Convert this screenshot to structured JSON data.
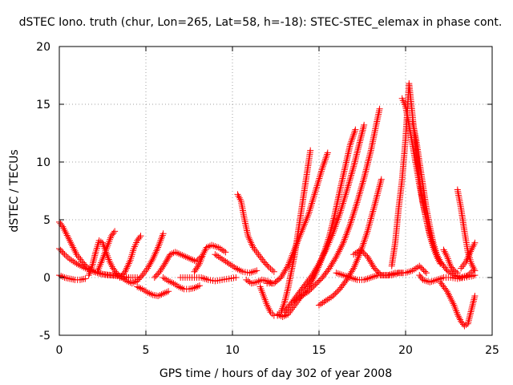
{
  "chart_data": {
    "type": "scatter",
    "title": "dSTEC Iono. truth (chur, Lon=265, Lat=58, h=-18): STEC-STEC_elemax in phase cont.",
    "xlabel": "GPS time / hours of day 302 of year 2008",
    "ylabel": "dSTEC  / TECUs",
    "xlim": [
      0,
      25
    ],
    "ylim": [
      -5,
      20
    ],
    "x_ticks": [
      0,
      5,
      10,
      15,
      20,
      25
    ],
    "y_ticks": [
      -5,
      0,
      5,
      10,
      15,
      20
    ],
    "grid": true,
    "marker": "+",
    "color": "#ff0000",
    "series": [
      {
        "x": [
          0.0,
          0.2,
          0.4,
          0.6,
          0.8,
          1.0,
          1.3,
          1.6,
          2.0,
          2.4,
          2.8,
          3.2,
          3.6,
          4.0
        ],
        "y": [
          4.8,
          4.4,
          3.8,
          3.2,
          2.6,
          2.0,
          1.4,
          0.9,
          0.5,
          0.3,
          0.2,
          0.2,
          0.1,
          0.0
        ]
      },
      {
        "x": [
          0.0,
          0.3,
          0.6,
          1.0,
          1.5,
          2.0,
          2.5,
          3.0,
          3.5,
          4.0,
          4.5
        ],
        "y": [
          2.5,
          2.0,
          1.6,
          1.2,
          0.8,
          0.5,
          0.3,
          0.2,
          0.1,
          0.0,
          0.0
        ]
      },
      {
        "x": [
          0.0,
          0.3,
          0.6,
          0.9,
          1.2,
          1.5
        ],
        "y": [
          0.2,
          0.0,
          -0.1,
          -0.2,
          -0.2,
          -0.1
        ]
      },
      {
        "x": [
          1.7,
          1.9,
          2.1,
          2.3,
          2.5,
          2.7,
          2.9,
          3.1,
          3.3
        ],
        "y": [
          0.2,
          1.0,
          2.2,
          3.2,
          3.0,
          2.2,
          1.4,
          0.8,
          0.4
        ]
      },
      {
        "x": [
          2.2,
          2.5,
          2.8,
          3.0,
          3.2
        ],
        "y": [
          0.5,
          1.6,
          2.8,
          3.6,
          4.0
        ]
      },
      {
        "x": [
          3.3,
          3.6,
          3.9,
          4.2,
          4.5,
          4.8,
          5.1,
          5.4,
          5.7,
          6.0
        ],
        "y": [
          0.3,
          0.0,
          -0.3,
          -0.5,
          -0.3,
          0.2,
          0.8,
          1.6,
          2.6,
          3.8
        ]
      },
      {
        "x": [
          3.5,
          3.8,
          4.1,
          4.3,
          4.5,
          4.7
        ],
        "y": [
          0.0,
          0.5,
          1.5,
          2.5,
          3.2,
          3.6
        ]
      },
      {
        "x": [
          4.5,
          4.8,
          5.1,
          5.4,
          5.7,
          6.0,
          6.3
        ],
        "y": [
          -0.8,
          -1.0,
          -1.3,
          -1.5,
          -1.6,
          -1.4,
          -1.2
        ]
      },
      {
        "x": [
          5.5,
          5.8,
          6.1,
          6.4,
          6.7,
          7.0,
          7.3,
          7.6,
          7.9,
          8.2
        ],
        "y": [
          0.0,
          0.5,
          1.2,
          2.0,
          2.2,
          2.0,
          1.8,
          1.6,
          1.4,
          1.8
        ]
      },
      {
        "x": [
          6.0,
          6.3,
          6.6,
          6.9,
          7.2,
          7.5,
          7.8,
          8.1
        ],
        "y": [
          0.0,
          -0.3,
          -0.5,
          -0.8,
          -1.0,
          -1.0,
          -0.9,
          -0.7
        ]
      },
      {
        "x": [
          7.0,
          7.4,
          7.8,
          8.2,
          8.6,
          9.0,
          9.4,
          9.8,
          10.2
        ],
        "y": [
          0.0,
          0.0,
          0.0,
          0.0,
          -0.2,
          -0.3,
          -0.2,
          -0.1,
          0.0
        ]
      },
      {
        "x": [
          7.8,
          8.1,
          8.3,
          8.5,
          8.8,
          9.2,
          9.6
        ],
        "y": [
          0.5,
          1.2,
          2.0,
          2.6,
          2.8,
          2.6,
          2.2
        ]
      },
      {
        "x": [
          9.0,
          9.4,
          9.8,
          10.2,
          10.6,
          11.0,
          11.4
        ],
        "y": [
          2.0,
          1.6,
          1.2,
          0.8,
          0.5,
          0.4,
          0.6
        ]
      },
      {
        "x": [
          10.3,
          10.5,
          10.7,
          10.9,
          11.2,
          11.5,
          11.8,
          12.1,
          12.4
        ],
        "y": [
          7.2,
          6.6,
          5.0,
          3.6,
          2.6,
          2.0,
          1.4,
          0.9,
          0.5
        ]
      },
      {
        "x": [
          10.8,
          11.1,
          11.4,
          11.7,
          12.0,
          12.3
        ],
        "y": [
          -0.2,
          -0.5,
          -0.4,
          -0.2,
          -0.3,
          -0.5
        ]
      },
      {
        "x": [
          11.6,
          11.8,
          12.0,
          12.2,
          12.4,
          12.6,
          12.8,
          13.0,
          13.2,
          13.4,
          13.6,
          13.8,
          14.0,
          14.2,
          14.4,
          14.5
        ],
        "y": [
          -0.8,
          -1.6,
          -2.4,
          -3.0,
          -3.3,
          -3.3,
          -3.0,
          -2.2,
          -1.0,
          0.5,
          2.0,
          4.0,
          6.0,
          8.0,
          10.0,
          11.0
        ]
      },
      {
        "x": [
          12.0,
          12.4,
          12.8,
          13.2,
          13.6,
          14.0,
          14.4,
          14.8,
          15.2,
          15.5
        ],
        "y": [
          -0.5,
          -0.5,
          0.0,
          1.0,
          2.5,
          4.0,
          5.5,
          7.5,
          9.5,
          10.8
        ]
      },
      {
        "x": [
          12.6,
          12.9,
          13.2,
          13.5,
          13.8,
          14.1,
          14.4,
          14.7,
          15.0,
          15.3,
          15.6,
          15.9,
          16.2,
          16.5,
          16.8,
          17.1
        ],
        "y": [
          -3.2,
          -3.4,
          -3.2,
          -2.6,
          -2.0,
          -1.4,
          -0.8,
          0.0,
          1.0,
          2.2,
          3.6,
          5.4,
          7.5,
          9.5,
          11.5,
          12.8
        ]
      },
      {
        "x": [
          13.0,
          13.4,
          13.8,
          14.2,
          14.6,
          15.0,
          15.4,
          15.8,
          16.2,
          16.6,
          17.0,
          17.4,
          17.6
        ],
        "y": [
          -3.0,
          -2.2,
          -1.4,
          -0.6,
          0.2,
          1.2,
          2.4,
          3.8,
          5.5,
          7.5,
          9.6,
          12.0,
          13.2
        ]
      },
      {
        "x": [
          13.6,
          14.0,
          14.4,
          14.8,
          15.2,
          15.6,
          16.0,
          16.4,
          16.8,
          17.2,
          17.6,
          18.0,
          18.3,
          18.5
        ],
        "y": [
          -2.0,
          -1.6,
          -1.2,
          -0.6,
          0.0,
          0.8,
          1.8,
          3.0,
          4.6,
          6.5,
          8.6,
          11.0,
          13.2,
          14.6
        ]
      },
      {
        "x": [
          15.0,
          15.4,
          15.8,
          16.2,
          16.6,
          17.0,
          17.4,
          17.8,
          18.2,
          18.6
        ],
        "y": [
          -2.4,
          -2.0,
          -1.6,
          -1.0,
          -0.2,
          0.8,
          2.2,
          4.0,
          6.2,
          8.5
        ]
      },
      {
        "x": [
          16.0,
          16.4,
          16.8,
          17.2,
          17.6,
          18.0,
          18.4,
          18.8,
          19.2,
          19.6,
          20.0,
          20.4,
          20.8,
          21.2
        ],
        "y": [
          0.4,
          0.2,
          0.0,
          -0.2,
          -0.2,
          0.0,
          0.2,
          0.2,
          0.2,
          0.4,
          0.4,
          0.6,
          1.0,
          0.4
        ]
      },
      {
        "x": [
          17.0,
          17.4,
          17.8,
          18.2,
          18.6,
          19.0,
          19.4,
          19.8
        ],
        "y": [
          2.0,
          2.4,
          1.8,
          0.8,
          0.2,
          0.2,
          0.4,
          0.4
        ]
      },
      {
        "x": [
          19.2,
          19.4,
          19.6,
          19.8,
          20.0,
          20.2,
          20.4,
          20.6,
          20.8,
          21.0,
          21.2,
          21.4,
          21.6,
          21.8,
          22.0
        ],
        "y": [
          1.0,
          3.0,
          6.0,
          8.5,
          12.0,
          16.8,
          14.0,
          11.0,
          8.5,
          6.5,
          5.0,
          3.6,
          2.6,
          1.8,
          1.2
        ]
      },
      {
        "x": [
          19.8,
          20.0,
          20.2,
          20.4,
          20.6,
          20.8,
          21.0,
          21.2,
          21.4,
          21.6,
          21.8
        ],
        "y": [
          15.5,
          14.8,
          13.2,
          11.5,
          9.8,
          8.0,
          6.4,
          5.0,
          3.8,
          2.8,
          2.0
        ]
      },
      {
        "x": [
          20.4,
          20.6,
          20.8,
          21.0,
          21.2,
          21.4,
          21.6,
          21.8,
          22.0,
          22.4,
          22.8,
          23.2,
          23.6,
          23.9
        ],
        "y": [
          13.5,
          12.0,
          10.0,
          8.0,
          6.0,
          4.4,
          3.0,
          2.0,
          1.4,
          0.6,
          0.2,
          0.0,
          0.2,
          0.6
        ]
      },
      {
        "x": [
          20.8,
          21.0,
          21.4,
          21.8,
          22.2,
          22.6,
          23.0,
          23.4,
          23.8,
          24.0
        ],
        "y": [
          0.2,
          -0.2,
          -0.4,
          -0.2,
          0.0,
          0.0,
          -0.1,
          0.0,
          0.1,
          0.2
        ]
      },
      {
        "x": [
          22.0,
          22.2,
          22.4,
          22.6,
          22.8,
          23.0,
          23.2,
          23.4,
          23.6,
          23.8,
          24.0
        ],
        "y": [
          -0.4,
          -0.8,
          -1.2,
          -1.8,
          -2.4,
          -3.2,
          -3.8,
          -4.2,
          -4.0,
          -2.8,
          -1.6
        ]
      },
      {
        "x": [
          22.2,
          22.4,
          22.6,
          22.8,
          23.0
        ],
        "y": [
          2.4,
          1.8,
          1.0,
          0.6,
          0.4
        ]
      },
      {
        "x": [
          23.0,
          23.2,
          23.4,
          23.6,
          23.8,
          24.0
        ],
        "y": [
          7.6,
          6.0,
          4.0,
          2.2,
          1.2,
          0.6
        ]
      },
      {
        "x": [
          23.2,
          23.5,
          23.8,
          24.0
        ],
        "y": [
          0.8,
          1.4,
          2.4,
          3.0
        ]
      }
    ]
  }
}
